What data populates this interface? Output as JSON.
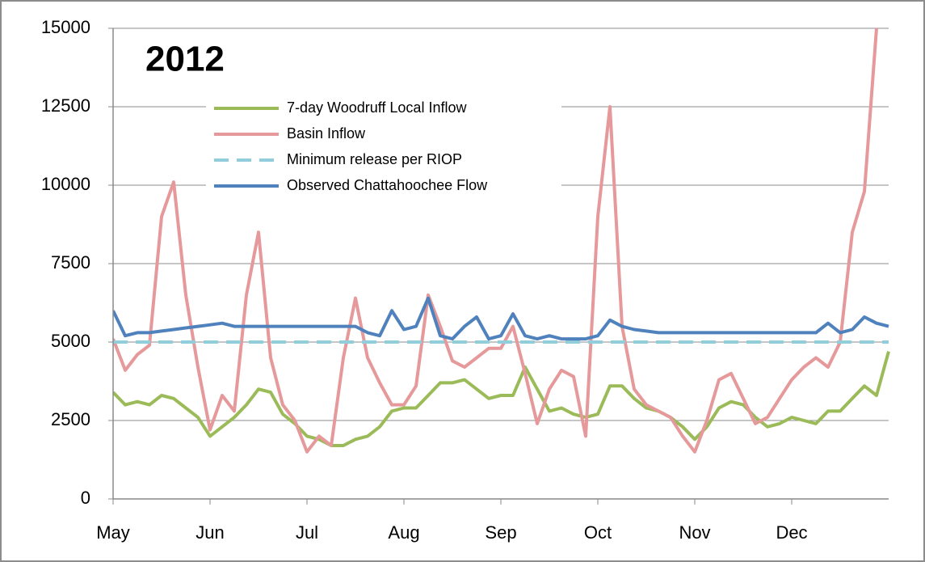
{
  "chart_data": {
    "type": "line",
    "title": "2012",
    "categories": [
      "May",
      null,
      null,
      null,
      null,
      null,
      null,
      null,
      "Jun",
      null,
      null,
      null,
      null,
      null,
      null,
      null,
      "Jul",
      null,
      null,
      null,
      null,
      null,
      null,
      null,
      "Aug",
      null,
      null,
      null,
      null,
      null,
      null,
      null,
      "Sep",
      null,
      null,
      null,
      null,
      null,
      null,
      null,
      "Oct",
      null,
      null,
      null,
      null,
      null,
      null,
      null,
      "Nov",
      null,
      null,
      null,
      null,
      null,
      null,
      null,
      "Dec",
      null,
      null,
      null,
      null,
      null,
      null,
      null,
      null
    ],
    "series": [
      {
        "name": "7-day Woodruff Local Inflow",
        "color": "#9bbb59",
        "values": [
          3400,
          3000,
          3100,
          3000,
          3300,
          3200,
          2900,
          2600,
          2000,
          2300,
          2600,
          3000,
          3500,
          3400,
          2700,
          2400,
          2000,
          1900,
          1700,
          1700,
          1900,
          2000,
          2300,
          2800,
          2900,
          2900,
          3300,
          3700,
          3700,
          3800,
          3500,
          3200,
          3300,
          3300,
          4200,
          3500,
          2800,
          2900,
          2700,
          2600,
          2700,
          3600,
          3600,
          3200,
          2900,
          2800,
          2600,
          2300,
          1900,
          2300,
          2900,
          3100,
          3000,
          2600,
          2300,
          2400,
          2600,
          2500,
          2400,
          2800,
          2800,
          3200,
          3600,
          3300,
          4700
        ]
      },
      {
        "name": "Basin Inflow",
        "color": "#e6999a",
        "values": [
          5100,
          4100,
          4600,
          4900,
          9000,
          10100,
          6500,
          4200,
          2200,
          3300,
          2800,
          6500,
          8500,
          4500,
          3000,
          2500,
          1500,
          2000,
          1700,
          4500,
          6400,
          4500,
          3700,
          3000,
          3000,
          3600,
          6500,
          5500,
          4400,
          4200,
          4500,
          4800,
          4800,
          5500,
          4000,
          2400,
          3500,
          4100,
          3900,
          2000,
          9000,
          12500,
          5500,
          3500,
          3000,
          2800,
          2600,
          2000,
          1500,
          2500,
          3800,
          4000,
          3200,
          2400,
          2600,
          3200,
          3800,
          4200,
          4500,
          4200,
          5000,
          8500,
          9800,
          15000,
          null
        ]
      },
      {
        "name": "Minimum release per RIOP",
        "color": "#92cddc",
        "dashed": true,
        "values": [
          5000,
          5000,
          5000,
          5000,
          5000,
          5000,
          5000,
          5000,
          5000,
          5000,
          5000,
          5000,
          5000,
          5000,
          5000,
          5000,
          5000,
          5000,
          5000,
          5000,
          5000,
          5000,
          5000,
          5000,
          5000,
          5000,
          5000,
          5000,
          5000,
          5000,
          5000,
          5000,
          5000,
          5000,
          5000,
          5000,
          5000,
          5000,
          5000,
          5000,
          5000,
          5000,
          5000,
          5000,
          5000,
          5000,
          5000,
          5000,
          5000,
          5000,
          5000,
          5000,
          5000,
          5000,
          5000,
          5000,
          5000,
          5000,
          5000,
          5000,
          5000,
          5000,
          5000,
          5000,
          5000
        ]
      },
      {
        "name": "Observed Chattahoochee Flow",
        "color": "#4f81bd",
        "values": [
          6000,
          5200,
          5300,
          5300,
          5350,
          5400,
          5450,
          5500,
          5550,
          5600,
          5500,
          5500,
          5500,
          5500,
          5500,
          5500,
          5500,
          5500,
          5500,
          5500,
          5500,
          5300,
          5200,
          6000,
          5400,
          5500,
          6400,
          5200,
          5100,
          5500,
          5800,
          5100,
          5200,
          5900,
          5200,
          5100,
          5200,
          5100,
          5100,
          5100,
          5200,
          5700,
          5500,
          5400,
          5350,
          5300,
          5300,
          5300,
          5300,
          5300,
          5300,
          5300,
          5300,
          5300,
          5300,
          5300,
          5300,
          5300,
          5300,
          5600,
          5300,
          5400,
          5800,
          5600,
          5500
        ]
      }
    ],
    "ylim": [
      0,
      15000
    ],
    "yticks": [
      0,
      2500,
      5000,
      7500,
      10000,
      12500,
      15000
    ],
    "grid": true
  }
}
